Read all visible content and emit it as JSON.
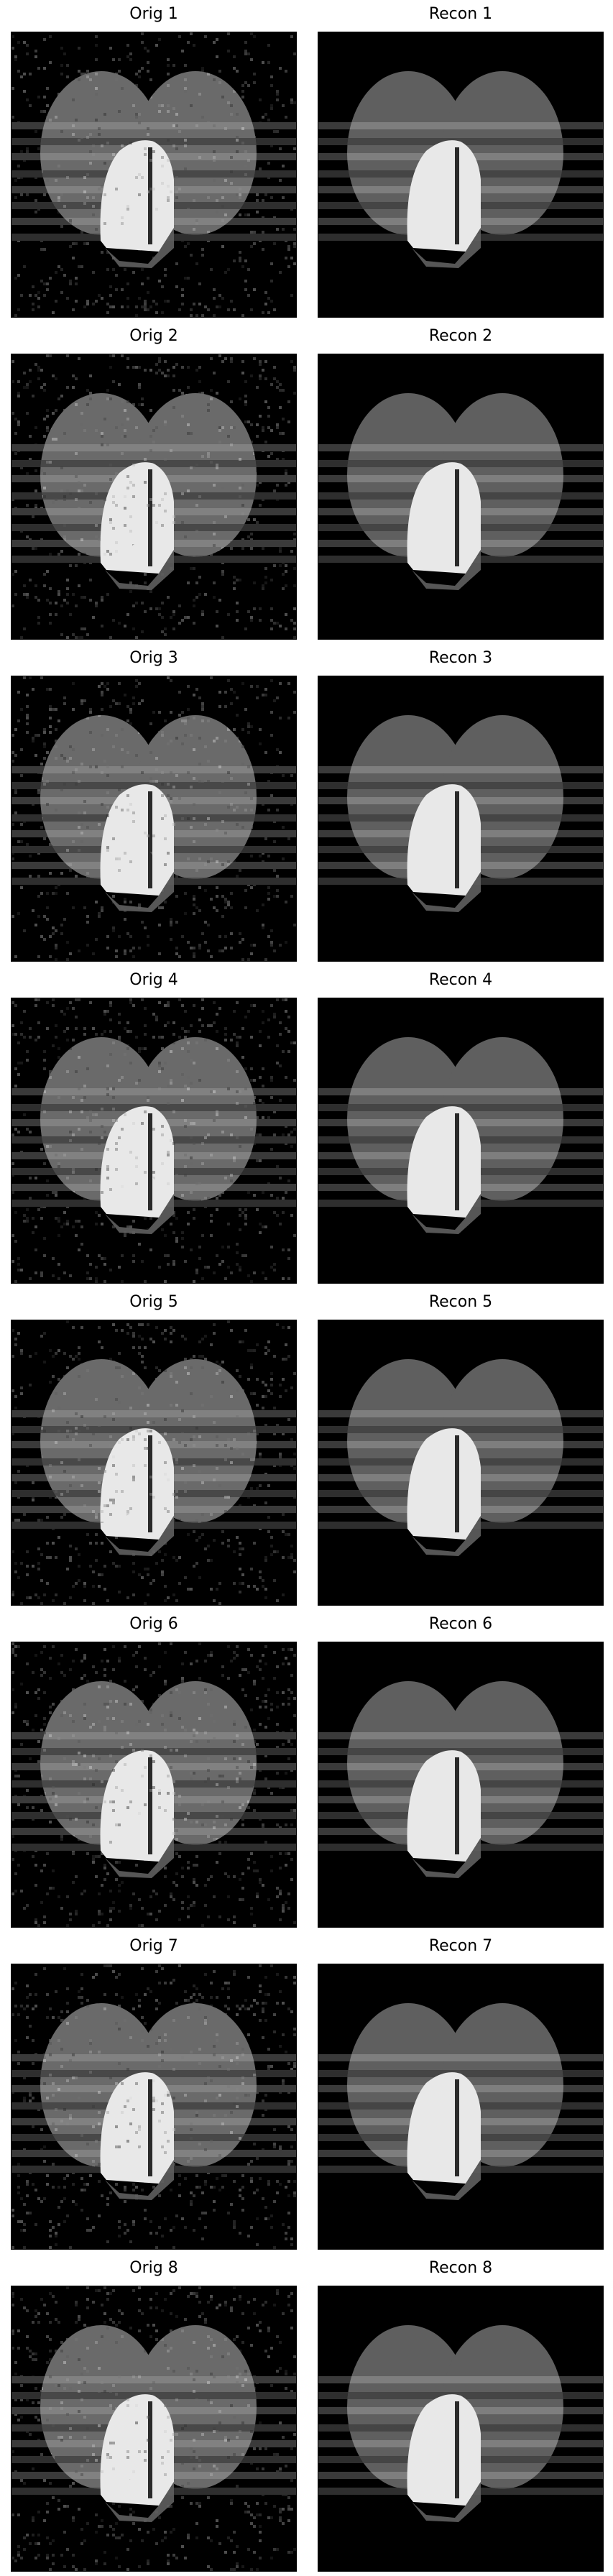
{
  "rows": [
    {
      "orig": "Orig 1",
      "recon": "Recon 1"
    },
    {
      "orig": "Orig 2",
      "recon": "Recon 2"
    },
    {
      "orig": "Orig 3",
      "recon": "Recon 3"
    },
    {
      "orig": "Orig 4",
      "recon": "Recon 4"
    },
    {
      "orig": "Orig 5",
      "recon": "Recon 5"
    },
    {
      "orig": "Orig 6",
      "recon": "Recon 6"
    },
    {
      "orig": "Orig 7",
      "recon": "Recon 7"
    },
    {
      "orig": "Orig 8",
      "recon": "Recon 8"
    }
  ],
  "colors": {
    "background": "#000000",
    "lobe": "#5f5f5f",
    "lobe_noisy": "#6a6a6a",
    "bright": "#e8e8e8",
    "stripe_light": "#8c8c8c",
    "stripe_dark": "#3a3a3a",
    "divider": "#2a2a2a"
  }
}
